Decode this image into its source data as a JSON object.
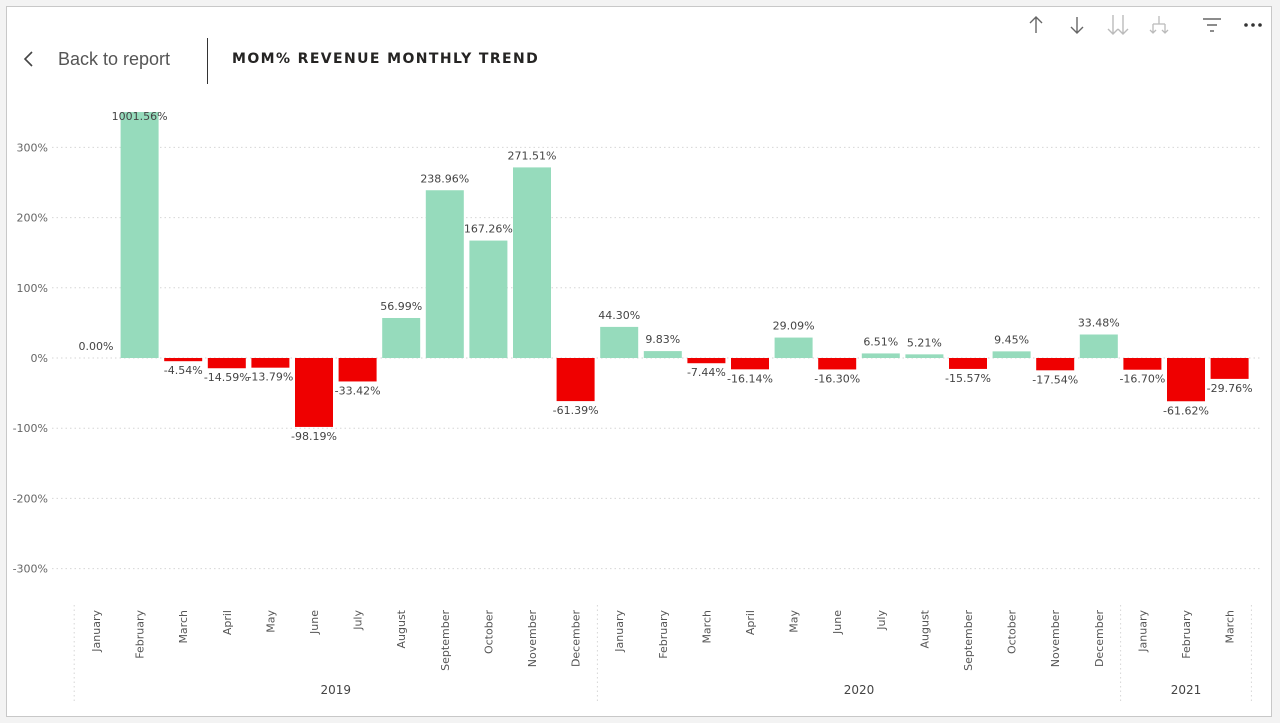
{
  "header": {
    "back_label": "Back to report",
    "title": "MOM% REVENUE MONTHLY TREND"
  },
  "toolbar": {
    "icons": [
      "sort-ascending-icon",
      "sort-descending-icon",
      "expand-all-icon",
      "drill-down-icon",
      "filter-icon",
      "more-options-icon"
    ]
  },
  "colors": {
    "positive": "#96dbbc",
    "negative": "#ef0000",
    "grid": "#d6d6d6",
    "text": "#555555"
  },
  "chart_data": {
    "type": "bar",
    "title": "MOM% REVENUE MONTHLY TREND",
    "xlabel": "",
    "ylabel": "",
    "ylim": [
      -350,
      350
    ],
    "y_ticks": [
      300,
      200,
      100,
      0,
      -100,
      -200,
      -300
    ],
    "y_tick_labels": [
      "300%",
      "200%",
      "100%",
      "0%",
      "-100%",
      "-200%",
      "-300%"
    ],
    "grid": true,
    "categories": [
      "January",
      "February",
      "March",
      "April",
      "May",
      "June",
      "July",
      "August",
      "September",
      "October",
      "November",
      "December",
      "January",
      "February",
      "March",
      "April",
      "May",
      "June",
      "July",
      "August",
      "September",
      "October",
      "November",
      "December",
      "January",
      "February",
      "March"
    ],
    "values": [
      0.0,
      1001.56,
      -4.54,
      -14.59,
      -13.79,
      -98.19,
      -33.42,
      56.99,
      238.96,
      167.26,
      271.51,
      -61.39,
      44.3,
      9.83,
      -7.44,
      -16.14,
      29.09,
      -16.3,
      6.51,
      5.21,
      -15.57,
      9.45,
      -17.54,
      33.48,
      -16.7,
      -61.62,
      -29.76
    ],
    "data_labels": [
      "0.00%",
      "1001.56%",
      "-4.54%",
      "-14.59%",
      "-13.79%",
      "-98.19%",
      "-33.42%",
      "56.99%",
      "238.96%",
      "167.26%",
      "271.51%",
      "-61.39%",
      "44.30%",
      "9.83%",
      "-7.44%",
      "-16.14%",
      "29.09%",
      "-16.30%",
      "6.51%",
      "5.21%",
      "-15.57%",
      "9.45%",
      "-17.54%",
      "33.48%",
      "-16.70%",
      "-61.62%",
      "-29.76%"
    ],
    "groups": [
      {
        "label": "2019",
        "count": 12
      },
      {
        "label": "2020",
        "count": 12
      },
      {
        "label": "2021",
        "count": 3
      }
    ]
  }
}
